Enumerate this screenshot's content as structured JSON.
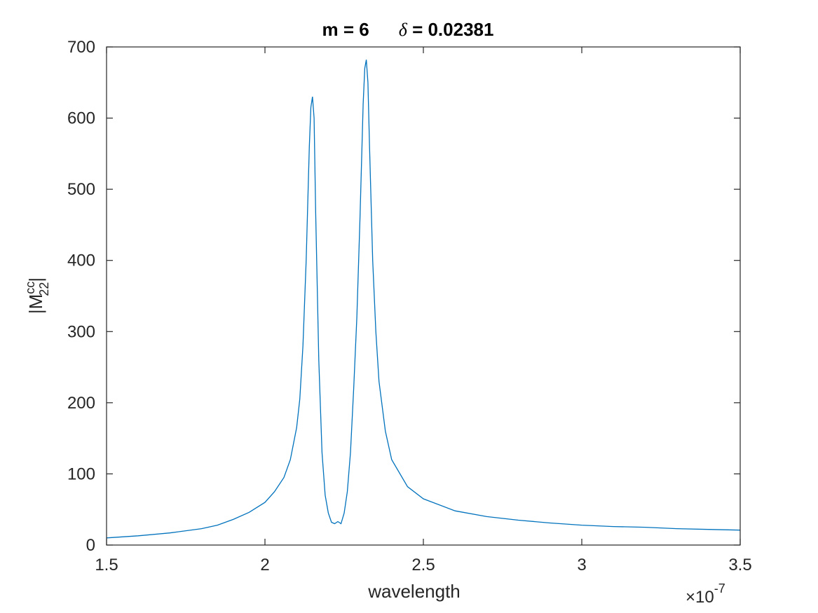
{
  "chart_data": {
    "type": "line",
    "title": {
      "part1": "m = 6",
      "delta_symbol": "δ",
      "part2": " = 0.02381"
    },
    "xlabel": "wavelength",
    "ylabel": {
      "bar_left": "|",
      "base": "M",
      "superscript": "cc",
      "subscript": "22",
      "bar_right": "|"
    },
    "x_exponent": {
      "times": "×10",
      "power": "-7"
    },
    "xlim": [
      1.5,
      3.5
    ],
    "ylim": [
      0,
      700
    ],
    "x_ticks": [
      1.5,
      2,
      2.5,
      3,
      3.5
    ],
    "x_tick_labels": [
      "1.5",
      "2",
      "2.5",
      "3",
      "3.5"
    ],
    "y_ticks": [
      0,
      100,
      200,
      300,
      400,
      500,
      600,
      700
    ],
    "y_tick_labels": [
      "0",
      "100",
      "200",
      "300",
      "400",
      "500",
      "600",
      "700"
    ],
    "grid": false,
    "box": true,
    "series": [
      {
        "color": "#0072BD",
        "x": [
          1.5,
          1.6,
          1.7,
          1.8,
          1.85,
          1.9,
          1.95,
          2.0,
          2.03,
          2.06,
          2.08,
          2.1,
          2.11,
          2.12,
          2.13,
          2.14,
          2.145,
          2.15,
          2.155,
          2.16,
          2.17,
          2.18,
          2.19,
          2.2,
          2.21,
          2.22,
          2.23,
          2.24,
          2.25,
          2.26,
          2.27,
          2.28,
          2.29,
          2.3,
          2.31,
          2.315,
          2.32,
          2.325,
          2.33,
          2.34,
          2.35,
          2.36,
          2.38,
          2.4,
          2.45,
          2.5,
          2.6,
          2.7,
          2.8,
          2.9,
          3.0,
          3.1,
          3.2,
          3.3,
          3.4,
          3.5
        ],
        "y": [
          10,
          13,
          17,
          23,
          28,
          36,
          46,
          60,
          75,
          95,
          120,
          165,
          205,
          280,
          400,
          560,
          615,
          630,
          600,
          470,
          260,
          130,
          70,
          45,
          32,
          30,
          33,
          30,
          45,
          75,
          130,
          220,
          320,
          460,
          620,
          670,
          682,
          650,
          560,
          400,
          300,
          230,
          160,
          120,
          82,
          65,
          48,
          40,
          35,
          31,
          28,
          26,
          25,
          23,
          22,
          21
        ]
      }
    ]
  }
}
